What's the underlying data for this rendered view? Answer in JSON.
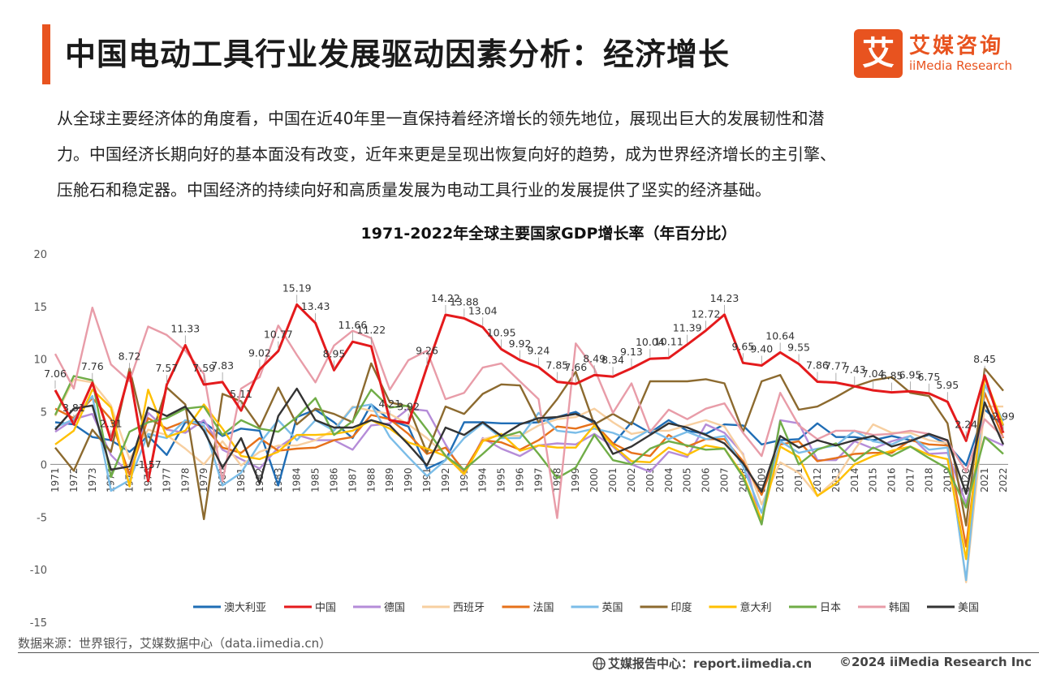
{
  "header": {
    "title": "中国电动工具行业发展驱动因素分析：经济增长",
    "logo_char": "艾",
    "logo_cn": "艾媒咨询",
    "logo_en": "iiMedia Research"
  },
  "description": [
    "从全球主要经济体的角度看，中国在近40年里一直保持着经济增长的领先地位，展现出巨大的发展韧性和潜",
    "力。中国经济长期向好的基本面没有改变，近年来更是呈现出恢复向好的趋势，成为世界经济增长的主引擎、",
    "压舱石和稳定器。中国经济的持续向好和高质量发展为电动工具行业的发展提供了坚实的经济基础。"
  ],
  "footer": {
    "source": "数据来源：世界银行，艾媒数据中心（data.iimedia.cn）",
    "report": "艾媒报告中心：report.iimedia.cn",
    "copyright": "©2024  iiMedia Research  Inc"
  },
  "chart_data": {
    "type": "line",
    "title": "1971-2022年全球主要国家GDP增长率（年百分比）",
    "ylim": [
      -15,
      20
    ],
    "yticks": [
      20,
      15,
      10,
      5,
      0,
      -5,
      -10,
      -15
    ],
    "x": [
      1971,
      1972,
      1973,
      1974,
      1975,
      1976,
      1977,
      1978,
      1979,
      1980,
      1981,
      1982,
      1983,
      1984,
      1985,
      1986,
      1987,
      1988,
      1989,
      1990,
      1991,
      1992,
      1993,
      1994,
      1995,
      1996,
      1997,
      1998,
      1999,
      2000,
      2001,
      2002,
      2003,
      2004,
      2005,
      2006,
      2007,
      2008,
      2009,
      2010,
      2011,
      2012,
      2013,
      2014,
      2015,
      2016,
      2017,
      2018,
      2019,
      2020,
      2021,
      2022
    ],
    "grid": false,
    "legend_position": "bottom",
    "series": [
      {
        "name": "澳大利亚",
        "color": "#1f6db5",
        "values": [
          4.0,
          3.8,
          2.6,
          2.3,
          1.2,
          2.7,
          0.9,
          4.0,
          4.0,
          2.7,
          3.4,
          3.2,
          -2.0,
          4.5,
          5.2,
          4.0,
          2.5,
          5.7,
          4.2,
          3.6,
          -0.4,
          0.4,
          4.0,
          4.0,
          3.9,
          3.9,
          4.0,
          4.5,
          5.0,
          3.9,
          1.9,
          4.0,
          3.0,
          4.2,
          3.2,
          2.9,
          3.8,
          3.7,
          1.9,
          2.3,
          2.4,
          3.9,
          2.6,
          2.6,
          2.3,
          2.7,
          2.3,
          2.8,
          1.9,
          -0.1,
          5.2,
          3.7
        ]
      },
      {
        "name": "中国",
        "color": "#e41a1c",
        "values": [
          7.06,
          3.81,
          7.76,
          2.31,
          8.72,
          -1.57,
          7.57,
          11.33,
          7.59,
          7.83,
          5.11,
          9.02,
          10.77,
          15.19,
          13.43,
          8.95,
          11.66,
          11.22,
          4.21,
          3.92,
          9.26,
          14.22,
          13.88,
          13.04,
          10.95,
          9.92,
          9.24,
          7.85,
          7.66,
          8.49,
          8.34,
          9.13,
          10.04,
          10.11,
          11.39,
          12.72,
          14.23,
          9.65,
          9.4,
          10.64,
          9.55,
          7.86,
          7.77,
          7.43,
          7.04,
          6.85,
          6.95,
          6.75,
          5.95,
          2.24,
          8.45,
          2.99
        ],
        "labels": {
          "1971": "7.06",
          "1972": "3.81",
          "1973": "7.76",
          "1974": "2.31",
          "1975": "8.72",
          "1976": "-1.57",
          "1977": "7.57",
          "1978": "11.33",
          "1979": "7.59",
          "1980": "7.83",
          "1981": "5.11",
          "1982": "9.02",
          "1983": "10.77",
          "1984": "15.19",
          "1985": "13.43",
          "1986": "8.95",
          "1987": "11.66",
          "1988": "11.22",
          "1989": "4.21",
          "1990": "3.92",
          "1991": "9.26",
          "1992": "14.22",
          "1993": "13.88",
          "1994": "13.04",
          "1995": "10.95",
          "1996": "9.92",
          "1997": "9.24",
          "1998": "7.85",
          "1999": "7.66",
          "2000": "8.49",
          "2001": "8.34",
          "2002": "9.13",
          "2003": "10.04",
          "2004": "10.11",
          "2005": "11.39",
          "2006": "12.72",
          "2007": "14.23",
          "2008": "9.65",
          "2009": "9.40",
          "2010": "10.64",
          "2011": "9.55",
          "2012": "7.86",
          "2013": "7.77",
          "2014": "7.43",
          "2015": "7.04",
          "2016": "6.85",
          "2017": "6.95",
          "2018": "6.75",
          "2019": "5.95",
          "2020": "2.24",
          "2021": "8.45",
          "2022": "2.99"
        }
      },
      {
        "name": "德国",
        "color": "#b58cd8",
        "values": [
          3.1,
          4.3,
          4.8,
          0.9,
          -0.9,
          4.9,
          3.3,
          3.0,
          4.2,
          1.4,
          0.5,
          -0.4,
          1.6,
          2.8,
          2.3,
          2.3,
          1.4,
          3.7,
          3.9,
          5.3,
          5.1,
          1.9,
          -1.0,
          2.5,
          1.5,
          0.8,
          1.8,
          2.0,
          1.9,
          2.9,
          1.7,
          0.0,
          -0.7,
          1.2,
          0.7,
          3.8,
          3.0,
          1.0,
          -5.7,
          4.2,
          3.9,
          0.4,
          0.4,
          2.2,
          1.5,
          2.2,
          2.7,
          1.0,
          1.1,
          -3.7,
          2.6,
          1.8
        ]
      },
      {
        "name": "西班牙",
        "color": "#f7cfa0",
        "values": [
          4.6,
          8.1,
          7.8,
          5.6,
          0.5,
          3.3,
          2.8,
          1.5,
          0.0,
          2.2,
          -0.1,
          1.2,
          1.8,
          1.8,
          2.3,
          3.3,
          5.5,
          5.1,
          4.8,
          3.8,
          2.5,
          0.9,
          -1.0,
          2.4,
          2.8,
          2.7,
          3.7,
          4.3,
          4.5,
          5.3,
          4.0,
          2.9,
          3.2,
          3.2,
          3.7,
          4.2,
          3.6,
          0.9,
          -3.8,
          0.2,
          -0.8,
          -3.0,
          -1.4,
          1.4,
          3.8,
          3.0,
          3.0,
          2.3,
          2.0,
          -11.2,
          5.5,
          5.5
        ]
      },
      {
        "name": "法国",
        "color": "#e6711a",
        "values": [
          5.3,
          4.4,
          6.3,
          4.3,
          -1.0,
          4.4,
          3.4,
          4.1,
          3.6,
          1.6,
          1.1,
          2.5,
          1.3,
          1.5,
          1.6,
          2.3,
          2.6,
          4.7,
          4.3,
          2.9,
          1.0,
          1.6,
          -0.6,
          2.3,
          2.1,
          1.4,
          2.3,
          3.6,
          3.4,
          3.9,
          2.0,
          1.1,
          0.8,
          2.8,
          1.7,
          2.4,
          2.4,
          0.3,
          -2.9,
          1.9,
          2.2,
          0.3,
          0.6,
          1.0,
          1.1,
          1.1,
          2.3,
          1.9,
          1.8,
          -7.8,
          6.8,
          2.5
        ]
      },
      {
        "name": "英国",
        "color": "#7bbde8",
        "values": [
          3.5,
          4.3,
          6.5,
          -2.5,
          -1.5,
          2.9,
          2.5,
          4.2,
          3.7,
          -2.0,
          -0.8,
          2.0,
          4.2,
          2.3,
          4.2,
          3.2,
          5.4,
          5.7,
          2.6,
          0.7,
          -1.1,
          0.4,
          2.5,
          3.9,
          2.5,
          2.5,
          4.9,
          3.2,
          3.0,
          3.4,
          3.0,
          2.3,
          3.3,
          2.4,
          3.1,
          2.4,
          2.7,
          -0.2,
          -4.6,
          2.2,
          1.1,
          1.5,
          1.8,
          3.2,
          2.2,
          1.9,
          2.7,
          1.4,
          1.6,
          -11.0,
          7.6,
          4.1
        ]
      },
      {
        "name": "印度",
        "color": "#8c6a2f",
        "values": [
          1.6,
          -0.6,
          3.3,
          1.2,
          9.1,
          1.7,
          7.3,
          5.7,
          -5.2,
          6.7,
          6.0,
          3.5,
          7.3,
          3.8,
          5.3,
          4.8,
          4.0,
          9.6,
          5.9,
          5.5,
          1.1,
          5.5,
          4.8,
          6.7,
          7.6,
          7.5,
          4.0,
          6.2,
          8.8,
          3.8,
          4.8,
          3.8,
          7.9,
          7.9,
          7.9,
          8.1,
          7.7,
          3.1,
          7.9,
          8.5,
          5.2,
          5.5,
          6.4,
          7.4,
          8.0,
          8.3,
          6.8,
          6.5,
          3.9,
          -5.8,
          9.1,
          7.0
        ]
      },
      {
        "name": "意大利",
        "color": "#ffc000",
        "values": [
          1.9,
          3.2,
          7.1,
          5.4,
          -2.1,
          7.1,
          2.6,
          3.2,
          5.7,
          3.4,
          0.8,
          0.5,
          1.2,
          2.8,
          2.8,
          2.9,
          3.2,
          4.2,
          3.4,
          2.1,
          1.5,
          0.8,
          -0.9,
          2.2,
          2.9,
          1.3,
          1.8,
          1.6,
          1.6,
          3.7,
          1.8,
          0.3,
          0.2,
          1.6,
          0.9,
          1.8,
          1.5,
          -1.0,
          -5.3,
          1.7,
          0.7,
          -3.0,
          -1.8,
          0.0,
          0.8,
          1.3,
          1.7,
          0.9,
          0.5,
          -9.0,
          8.3,
          3.7
        ]
      },
      {
        "name": "日本",
        "color": "#70ad47",
        "values": [
          4.7,
          8.4,
          8.0,
          -1.2,
          3.1,
          4.0,
          4.4,
          5.3,
          5.5,
          2.8,
          4.2,
          3.4,
          3.1,
          4.5,
          6.3,
          2.8,
          4.1,
          7.1,
          5.4,
          5.6,
          3.3,
          0.8,
          -0.5,
          1.0,
          2.6,
          3.1,
          1.0,
          -1.3,
          -0.3,
          2.8,
          0.4,
          0.0,
          1.5,
          2.2,
          1.8,
          1.4,
          1.5,
          -1.2,
          -5.7,
          4.1,
          0.0,
          1.4,
          2.0,
          0.3,
          1.6,
          0.8,
          1.7,
          0.6,
          -0.4,
          -4.1,
          2.6,
          1.0
        ]
      },
      {
        "name": "韩国",
        "color": "#e89ca8",
        "values": [
          10.5,
          7.2,
          14.9,
          9.5,
          7.9,
          13.1,
          12.3,
          10.8,
          8.6,
          -1.6,
          7.2,
          8.3,
          13.2,
          10.4,
          7.8,
          11.3,
          12.7,
          12.0,
          7.1,
          9.9,
          10.8,
          6.2,
          6.8,
          9.2,
          9.6,
          7.9,
          6.2,
          -5.1,
          11.5,
          9.1,
          4.9,
          7.7,
          3.1,
          5.2,
          4.3,
          5.3,
          5.8,
          3.0,
          0.8,
          6.8,
          3.7,
          2.4,
          3.2,
          3.2,
          2.8,
          2.9,
          3.2,
          2.9,
          2.2,
          -0.7,
          4.3,
          2.6
        ]
      },
      {
        "name": "美国",
        "color": "#333333",
        "values": [
          3.3,
          5.3,
          5.6,
          -0.5,
          -0.2,
          5.4,
          4.6,
          5.5,
          3.2,
          -0.3,
          2.5,
          -1.8,
          4.6,
          7.2,
          4.2,
          3.5,
          3.5,
          4.2,
          3.7,
          1.9,
          -0.1,
          3.5,
          2.8,
          4.0,
          2.7,
          3.8,
          4.4,
          4.5,
          4.8,
          4.1,
          1.0,
          1.7,
          2.8,
          3.9,
          3.5,
          2.8,
          2.0,
          0.1,
          -2.6,
          2.7,
          1.6,
          2.3,
          1.8,
          2.3,
          2.7,
          1.7,
          2.2,
          2.9,
          2.3,
          -2.8,
          5.9,
          1.9
        ]
      }
    ]
  }
}
